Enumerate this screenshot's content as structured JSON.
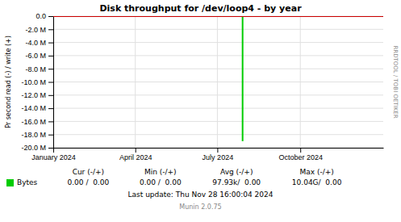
{
  "chart_data": {
    "type": "line",
    "title": "Disk throughput for /dev/loop4 - by year",
    "y_label": "Pr second read (-) / write (+)",
    "xlim": [
      1704067200,
      1735689600
    ],
    "xticks": [
      {
        "value": 1704067200,
        "label": "January 2024"
      },
      {
        "value": 1711929600,
        "label": "April 2024"
      },
      {
        "value": 1719792000,
        "label": "July 2024"
      },
      {
        "value": 1727740800,
        "label": "October 2024"
      }
    ],
    "ylim": [
      -20000000,
      0
    ],
    "yticks": [
      {
        "value": 0,
        "label": "0.0"
      },
      {
        "value": -2000000,
        "label": "-2.0 M"
      },
      {
        "value": -4000000,
        "label": "-4.0 M"
      },
      {
        "value": -6000000,
        "label": "-6.0 M"
      },
      {
        "value": -8000000,
        "label": "-8.0 M"
      },
      {
        "value": -10000000,
        "label": "-10.0 M"
      },
      {
        "value": -12000000,
        "label": "-12.0 M"
      },
      {
        "value": -14000000,
        "label": "-14.0 M"
      },
      {
        "value": -16000000,
        "label": "-16.0 M"
      },
      {
        "value": -18000000,
        "label": "-18.0 M"
      },
      {
        "value": -20000000,
        "label": "-20.0 M"
      }
    ],
    "grid": true,
    "legend": "bottom",
    "series": [
      {
        "name": "Bytes",
        "color": "#00cc00",
        "x": [
          1722211200,
          1722211200
        ],
        "values": [
          -19000000,
          0
        ]
      },
      {
        "color": "#cc0000",
        "x": [
          1704067200,
          1735689600
        ],
        "values": [
          0,
          0
        ]
      }
    ],
    "annotations": [
      "Cur (-/+)",
      "Min (-/+)",
      "Avg (-/+)",
      "Max (-/+)",
      "0.00 /  0.00",
      "0.00 /  0.00",
      "97.93k/  0.00",
      "10.04G/  0.00",
      "Last update: Thu Nov 28 16:00:04 2024",
      "Munin 2.0.75",
      "RRDTOOL / TOBI OETIKER"
    ]
  }
}
